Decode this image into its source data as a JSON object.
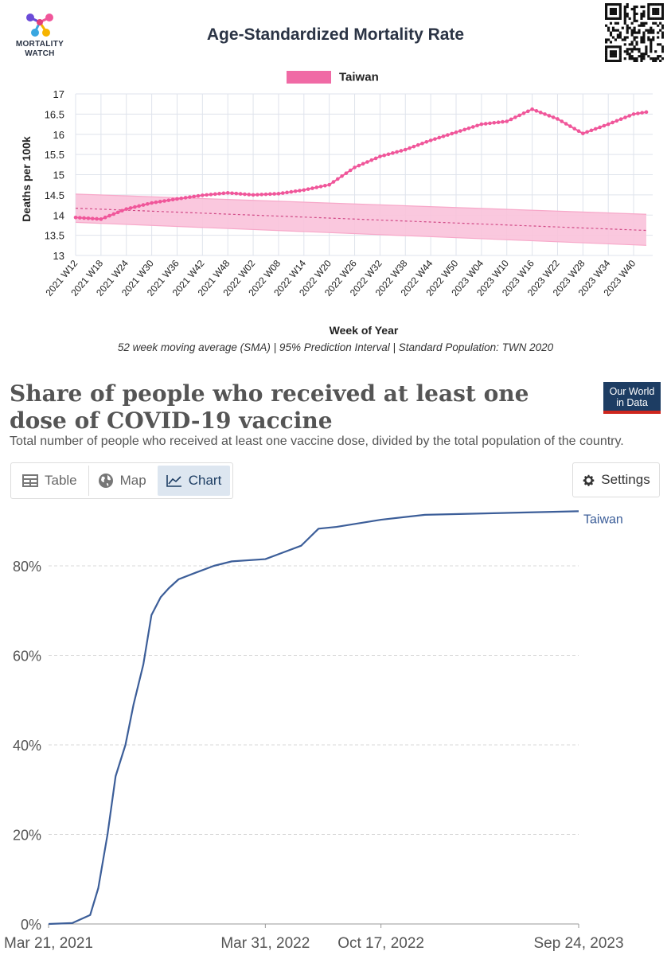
{
  "mortality_watch": {
    "logo_line1": "MORTALITY",
    "logo_line2": "WATCH",
    "footnote": "52 week moving average (SMA) | 95% Prediction Interval | Standard Population: TWN 2020"
  },
  "owid": {
    "title": "Share of people who received at least one dose of COVID-19 vaccine",
    "subtitle": "Total number of people who received at least one vaccine dose, divided by the total population of the country.",
    "logo_line1": "Our World",
    "logo_line2": "in Data",
    "tabs": [
      "Table",
      "Map",
      "Chart"
    ],
    "active_tab": "Chart",
    "settings_label": "Settings"
  },
  "colors": {
    "mw_series": "#f0569a",
    "mw_band": "#f9c2da",
    "owid_series": "#3c5e99",
    "owid_brand": "#1d3d63"
  },
  "chart_data": [
    {
      "type": "line",
      "title": "Age-Standardized Mortality Rate",
      "legend": [
        "Taiwan"
      ],
      "legend_position": "top-center",
      "xlabel": "Week of Year",
      "ylabel": "Deaths per 100k",
      "ylim": [
        13,
        17
      ],
      "y_ticks": [
        "13",
        "13.5",
        "14",
        "14.5",
        "15",
        "15.5",
        "16",
        "16.5",
        "17"
      ],
      "x_ticks": [
        "2021 W12",
        "2021 W18",
        "2021 W24",
        "2021 W30",
        "2021 W36",
        "2021 W42",
        "2021 W48",
        "2022 W02",
        "2022 W08",
        "2022 W14",
        "2022 W20",
        "2022 W26",
        "2022 W32",
        "2022 W38",
        "2022 W44",
        "2022 W50",
        "2023 W04",
        "2023 W10",
        "2023 W16",
        "2023 W22",
        "2023 W28",
        "2023 W34",
        "2023 W40"
      ],
      "grid": true,
      "series": [
        {
          "name": "Taiwan",
          "x": [
            "2021 W12",
            "2021 W18",
            "2021 W24",
            "2021 W30",
            "2021 W36",
            "2021 W42",
            "2021 W48",
            "2022 W02",
            "2022 W08",
            "2022 W14",
            "2022 W20",
            "2022 W26",
            "2022 W32",
            "2022 W38",
            "2022 W44",
            "2022 W50",
            "2023 W04",
            "2023 W10",
            "2023 W16",
            "2023 W22",
            "2023 W28",
            "2023 W34",
            "2023 W40",
            "2023 W43"
          ],
          "values": [
            13.94,
            13.9,
            14.15,
            14.3,
            14.4,
            14.49,
            14.55,
            14.5,
            14.53,
            14.62,
            14.75,
            15.18,
            15.45,
            15.62,
            15.85,
            16.05,
            16.25,
            16.32,
            16.62,
            16.38,
            16.02,
            16.25,
            16.5,
            16.55
          ]
        }
      ],
      "baseline": {
        "x": [
          "2021 W12",
          "2023 W43"
        ],
        "values": [
          14.17,
          13.62
        ],
        "interval_upper": [
          14.52,
          14.02
        ],
        "interval_lower": [
          13.82,
          13.25
        ]
      }
    },
    {
      "type": "line",
      "title": "Share of people who received at least one dose of COVID-19 vaccine",
      "ylim": [
        0,
        90
      ],
      "y_ticks": [
        "0%",
        "20%",
        "40%",
        "60%",
        "80%"
      ],
      "x_ticks": [
        "Mar 21, 2021",
        "Mar 31, 2022",
        "Oct 17, 2022",
        "Sep 24, 2023"
      ],
      "grid": true,
      "series": [
        {
          "name": "Taiwan",
          "x": [
            "2021-03-21",
            "2021-05-01",
            "2021-06-01",
            "2021-06-15",
            "2021-07-01",
            "2021-07-15",
            "2021-08-01",
            "2021-08-15",
            "2021-09-01",
            "2021-09-15",
            "2021-10-01",
            "2021-10-15",
            "2021-11-01",
            "2021-12-01",
            "2022-01-01",
            "2022-02-01",
            "2022-03-31",
            "2022-05-01",
            "2022-06-01",
            "2022-07-01",
            "2022-08-01",
            "2022-10-17",
            "2023-01-01",
            "2023-09-24"
          ],
          "values": [
            0,
            0.2,
            2,
            8,
            20,
            33,
            40,
            49,
            58,
            69,
            73,
            75,
            77,
            78.5,
            80,
            81,
            81.5,
            83,
            84.5,
            88.3,
            88.7,
            90.3,
            91.4,
            92.2
          ]
        }
      ]
    }
  ]
}
